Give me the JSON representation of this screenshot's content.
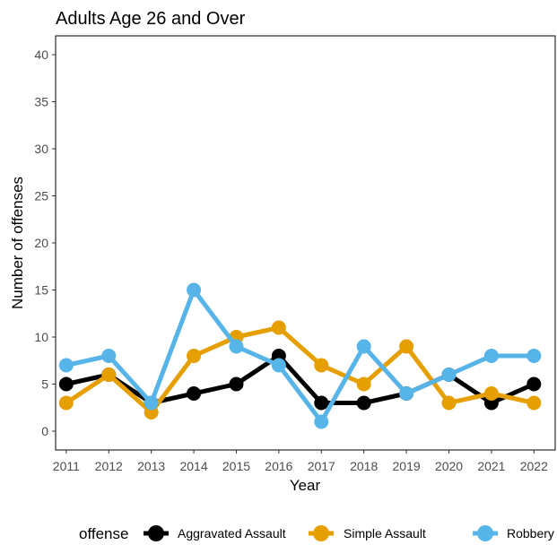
{
  "chart_data": {
    "type": "line",
    "title": "Adults Age 26 and Over",
    "xlabel": "Year",
    "ylabel": "Number of offenses",
    "x": [
      2011,
      2012,
      2013,
      2014,
      2015,
      2016,
      2017,
      2018,
      2019,
      2020,
      2021,
      2022
    ],
    "xlim": [
      2010.75,
      2022.5
    ],
    "ylim": [
      -2,
      42
    ],
    "yticks": [
      0,
      5,
      10,
      15,
      20,
      25,
      30,
      35,
      40
    ],
    "grid": false,
    "legend": {
      "title": "offense",
      "position": "bottom"
    },
    "series": [
      {
        "name": "Aggravated Assault",
        "color": "#000000",
        "values": [
          5,
          6,
          3,
          4,
          5,
          8,
          3,
          3,
          4,
          6,
          3,
          5
        ]
      },
      {
        "name": "Simple Assault",
        "color": "#E69F00",
        "values": [
          3,
          6,
          2,
          8,
          10,
          11,
          7,
          5,
          9,
          3,
          4,
          3
        ]
      },
      {
        "name": "Robbery",
        "color": "#56B4E9",
        "values": [
          7,
          8,
          3,
          15,
          9,
          7,
          1,
          9,
          4,
          6,
          8,
          8
        ]
      }
    ]
  }
}
